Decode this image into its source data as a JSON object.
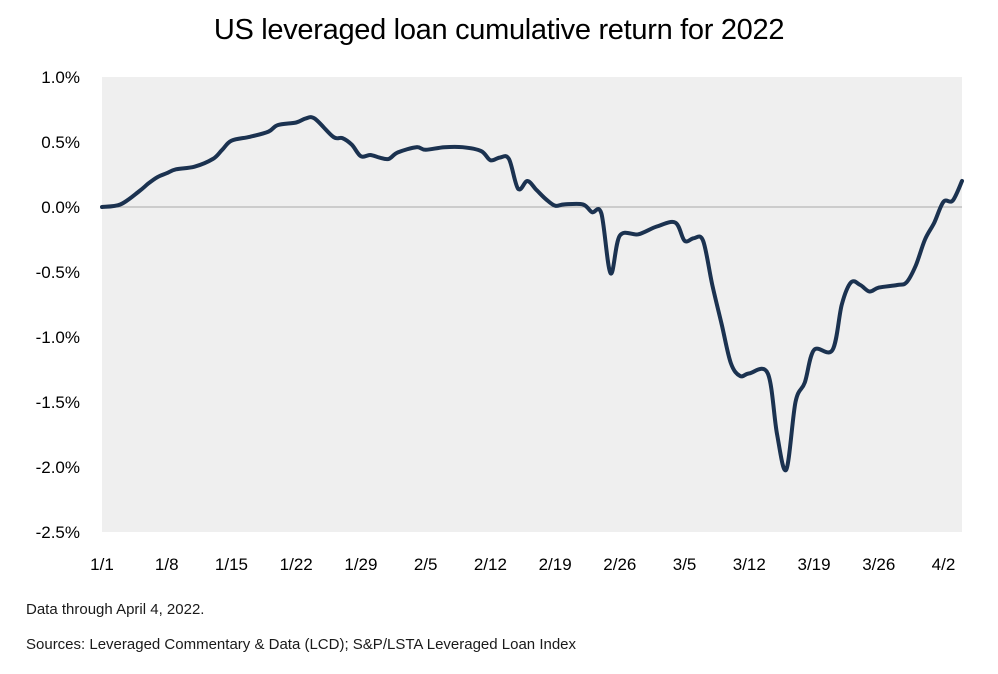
{
  "chart_data": {
    "type": "line",
    "title": "US leveraged loan cumulative return for 2022",
    "xlabel": "",
    "ylabel": "",
    "x_ticks": [
      "1/1",
      "1/8",
      "1/15",
      "1/22",
      "1/29",
      "2/5",
      "2/12",
      "2/19",
      "2/26",
      "3/5",
      "3/12",
      "3/19",
      "3/26",
      "4/2"
    ],
    "y_ticks": [
      "1.0%",
      "0.5%",
      "0.0%",
      "-0.5%",
      "-1.0%",
      "-1.5%",
      "-2.0%",
      "-2.5%"
    ],
    "ylim": [
      -2.5,
      1.0
    ],
    "xlim": [
      "1/1",
      "4/4"
    ],
    "grid": false,
    "zero_line": true,
    "series": [
      {
        "color": "#1b3250",
        "points": [
          [
            "1/1",
            0.0
          ],
          [
            "1/3",
            0.02
          ],
          [
            "1/5",
            0.12
          ],
          [
            "1/6",
            0.18
          ],
          [
            "1/7",
            0.23
          ],
          [
            "1/8",
            0.26
          ],
          [
            "1/9",
            0.29
          ],
          [
            "1/11",
            0.31
          ],
          [
            "1/13",
            0.37
          ],
          [
            "1/14",
            0.44
          ],
          [
            "1/15",
            0.51
          ],
          [
            "1/17",
            0.54
          ],
          [
            "1/19",
            0.58
          ],
          [
            "1/20",
            0.63
          ],
          [
            "1/22",
            0.65
          ],
          [
            "1/23",
            0.68
          ],
          [
            "1/24",
            0.68
          ],
          [
            "1/26",
            0.54
          ],
          [
            "1/27",
            0.53
          ],
          [
            "1/28",
            0.48
          ],
          [
            "1/29",
            0.39
          ],
          [
            "1/30",
            0.4
          ],
          [
            "1/31",
            0.38
          ],
          [
            "2/1",
            0.37
          ],
          [
            "2/2",
            0.42
          ],
          [
            "2/4",
            0.46
          ],
          [
            "2/5",
            0.44
          ],
          [
            "2/7",
            0.46
          ],
          [
            "2/9",
            0.46
          ],
          [
            "2/11",
            0.43
          ],
          [
            "2/12",
            0.36
          ],
          [
            "2/13",
            0.38
          ],
          [
            "2/14",
            0.37
          ],
          [
            "2/15",
            0.14
          ],
          [
            "2/16",
            0.2
          ],
          [
            "2/17",
            0.13
          ],
          [
            "2/18",
            0.06
          ],
          [
            "2/19",
            0.01
          ],
          [
            "2/20",
            0.02
          ],
          [
            "2/22",
            0.02
          ],
          [
            "2/23",
            -0.04
          ],
          [
            "2/24",
            -0.05
          ],
          [
            "2/25",
            -0.51
          ],
          [
            "2/26",
            -0.22
          ],
          [
            "2/28",
            -0.21
          ],
          [
            "3/2",
            -0.15
          ],
          [
            "3/4",
            -0.12
          ],
          [
            "3/5",
            -0.26
          ],
          [
            "3/6",
            -0.24
          ],
          [
            "3/7",
            -0.26
          ],
          [
            "3/8",
            -0.6
          ],
          [
            "3/9",
            -0.9
          ],
          [
            "3/10",
            -1.2
          ],
          [
            "3/11",
            -1.3
          ],
          [
            "3/12",
            -1.28
          ],
          [
            "3/14",
            -1.28
          ],
          [
            "3/15",
            -1.75
          ],
          [
            "3/16",
            -2.02
          ],
          [
            "3/17",
            -1.5
          ],
          [
            "3/18",
            -1.35
          ],
          [
            "3/19",
            -1.1
          ],
          [
            "3/21",
            -1.1
          ],
          [
            "3/22",
            -0.75
          ],
          [
            "3/23",
            -0.58
          ],
          [
            "3/24",
            -0.6
          ],
          [
            "3/25",
            -0.65
          ],
          [
            "3/26",
            -0.62
          ],
          [
            "3/28",
            -0.6
          ],
          [
            "3/29",
            -0.58
          ],
          [
            "3/30",
            -0.45
          ],
          [
            "3/31",
            -0.25
          ],
          [
            "4/1",
            -0.12
          ],
          [
            "4/2",
            0.04
          ],
          [
            "4/3",
            0.05
          ],
          [
            "4/4",
            0.2
          ]
        ]
      }
    ]
  },
  "notes": {
    "data_through": "Data through April 4, 2022.",
    "sources": "Sources: Leveraged Commentary & Data (LCD); S&P/LSTA  Leveraged Loan Index"
  },
  "colors": {
    "plot_background": "#efefef",
    "line": "#1b3250",
    "zero_line": "#a8a8a8"
  }
}
